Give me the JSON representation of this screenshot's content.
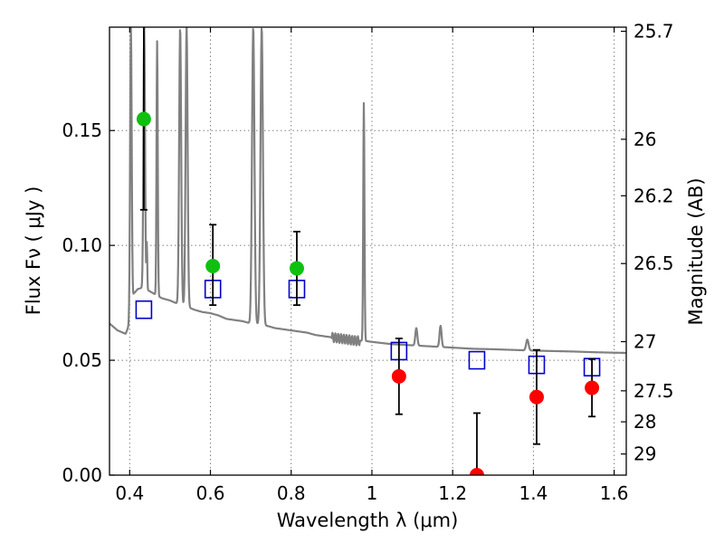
{
  "chart_data": {
    "type": "scatter",
    "xlabel": "Wavelength  λ (μm)",
    "ylabel": "Flux  Fν  ( μJy )",
    "ylabel_right": "Magnitude (AB)",
    "xlim": [
      0.35,
      1.63
    ],
    "ylim": [
      0.0,
      0.195
    ],
    "x_ticks": [
      0.4,
      0.6,
      0.8,
      1.0,
      1.2,
      1.4,
      1.6
    ],
    "x_tick_labels": [
      "0.4",
      "0.6",
      "0.8",
      "1",
      "1.2",
      "1.4",
      "1.6"
    ],
    "y_ticks": [
      0.0,
      0.05,
      0.1,
      0.15
    ],
    "y_tick_labels": [
      "0.00",
      "0.05",
      "0.10",
      "0.15"
    ],
    "right_ticks": [
      {
        "label": "25.7",
        "flux": 0.1932
      },
      {
        "label": "26",
        "flux": 0.1462
      },
      {
        "label": "26.2",
        "flux": 0.1216
      },
      {
        "label": "26.5",
        "flux": 0.0921
      },
      {
        "label": "27",
        "flux": 0.0581
      },
      {
        "label": "27.5",
        "flux": 0.0367
      },
      {
        "label": "28",
        "flux": 0.0232
      },
      {
        "label": "29",
        "flux": 0.0092
      }
    ],
    "grid": true,
    "detections": [
      {
        "x": 0.435,
        "y": 0.155,
        "yerr_low": 0.0395,
        "yerr_high": 0.045,
        "color": "#10c010"
      },
      {
        "x": 0.606,
        "y": 0.091,
        "yerr_low": 0.017,
        "yerr_high": 0.018,
        "color": "#10c010"
      },
      {
        "x": 0.814,
        "y": 0.09,
        "yerr_low": 0.016,
        "yerr_high": 0.016,
        "color": "#10c010"
      },
      {
        "x": 1.067,
        "y": 0.043,
        "yerr_low": 0.0165,
        "yerr_high": 0.0165,
        "color": "#ff0000"
      },
      {
        "x": 1.26,
        "y": 0.0,
        "yerr_low": 0.0,
        "yerr_high": 0.027,
        "color": "#ff0000"
      },
      {
        "x": 1.408,
        "y": 0.034,
        "yerr_low": 0.0205,
        "yerr_high": 0.0205,
        "color": "#ff0000"
      },
      {
        "x": 1.545,
        "y": 0.038,
        "yerr_low": 0.0125,
        "yerr_high": 0.0125,
        "color": "#ff0000"
      }
    ],
    "model_photometry": [
      {
        "x": 0.435,
        "y": 0.072
      },
      {
        "x": 0.606,
        "y": 0.081
      },
      {
        "x": 0.814,
        "y": 0.081
      },
      {
        "x": 1.067,
        "y": 0.054
      },
      {
        "x": 1.26,
        "y": 0.05
      },
      {
        "x": 1.408,
        "y": 0.048
      },
      {
        "x": 1.545,
        "y": 0.047
      }
    ],
    "sed_continuum": [
      [
        0.35,
        0.066
      ],
      [
        0.37,
        0.063
      ],
      [
        0.39,
        0.0615
      ],
      [
        0.4,
        0.066
      ],
      [
        0.41,
        0.079
      ],
      [
        0.42,
        0.081
      ],
      [
        0.43,
        0.0815
      ],
      [
        0.44,
        0.081
      ],
      [
        0.45,
        0.08
      ],
      [
        0.46,
        0.079
      ],
      [
        0.48,
        0.077
      ],
      [
        0.5,
        0.076
      ],
      [
        0.52,
        0.0745
      ],
      [
        0.54,
        0.0735
      ],
      [
        0.56,
        0.072
      ],
      [
        0.58,
        0.071
      ],
      [
        0.6,
        0.0705
      ],
      [
        0.62,
        0.0695
      ],
      [
        0.64,
        0.068
      ],
      [
        0.66,
        0.0675
      ],
      [
        0.68,
        0.067
      ],
      [
        0.7,
        0.066
      ],
      [
        0.72,
        0.0655
      ],
      [
        0.74,
        0.065
      ],
      [
        0.76,
        0.064
      ],
      [
        0.78,
        0.0635
      ],
      [
        0.8,
        0.063
      ],
      [
        0.82,
        0.0625
      ],
      [
        0.84,
        0.062
      ],
      [
        0.86,
        0.061
      ],
      [
        0.88,
        0.0605
      ],
      [
        0.9,
        0.06
      ],
      [
        0.92,
        0.0595
      ],
      [
        0.94,
        0.059
      ],
      [
        0.96,
        0.0585
      ],
      [
        0.98,
        0.0585
      ],
      [
        1.0,
        0.058
      ],
      [
        1.05,
        0.057
      ],
      [
        1.1,
        0.0565
      ],
      [
        1.15,
        0.056
      ],
      [
        1.2,
        0.0555
      ],
      [
        1.25,
        0.055
      ],
      [
        1.3,
        0.0548
      ],
      [
        1.35,
        0.0545
      ],
      [
        1.4,
        0.0542
      ],
      [
        1.45,
        0.054
      ],
      [
        1.5,
        0.0538
      ],
      [
        1.55,
        0.0535
      ],
      [
        1.6,
        0.0533
      ],
      [
        1.63,
        0.0532
      ]
    ],
    "sed_lines": [
      {
        "x": 0.403,
        "peak": 0.195,
        "width": 0.004
      },
      {
        "x": 0.436,
        "peak": 0.195,
        "width": 0.004
      },
      {
        "x": 0.4425,
        "peak": 0.101,
        "width": 0.002
      },
      {
        "x": 0.468,
        "peak": 0.189,
        "width": 0.003
      },
      {
        "x": 0.525,
        "peak": 0.195,
        "width": 0.005
      },
      {
        "x": 0.541,
        "peak": 0.195,
        "width": 0.005
      },
      {
        "x": 0.706,
        "peak": 0.195,
        "width": 0.006
      },
      {
        "x": 0.727,
        "peak": 0.195,
        "width": 0.006
      },
      {
        "x": 0.98,
        "peak": 0.162,
        "width": 0.003
      },
      {
        "x": 1.11,
        "peak": 0.064,
        "width": 0.005
      },
      {
        "x": 1.17,
        "peak": 0.065,
        "width": 0.005
      },
      {
        "x": 1.385,
        "peak": 0.059,
        "width": 0.006
      }
    ],
    "colors": {
      "sed": "#808080",
      "model_marker": "#0000cc",
      "errorbar": "#000000",
      "grid": "#808080"
    }
  }
}
